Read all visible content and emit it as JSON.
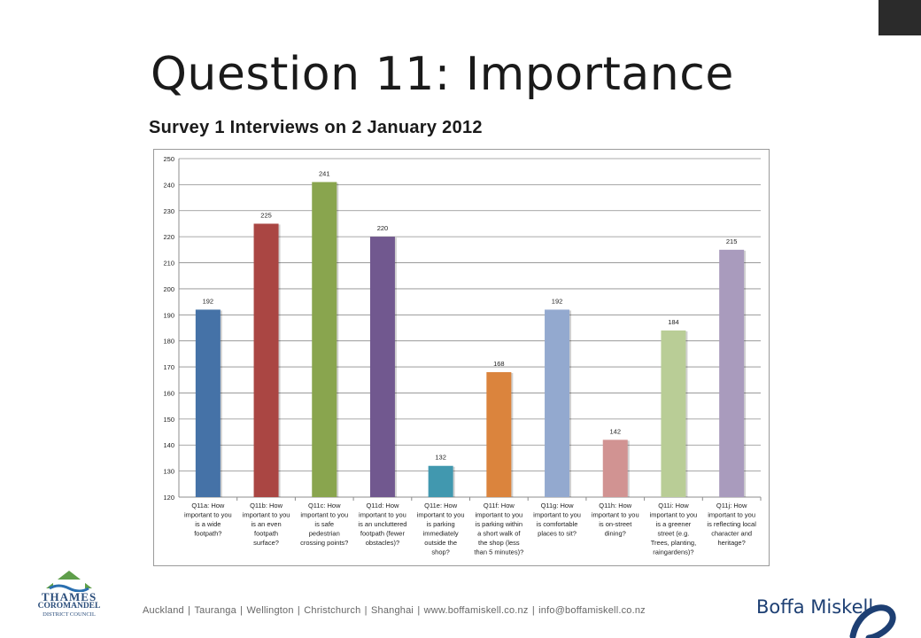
{
  "slide": {
    "title": "Question 11: Importance",
    "subtitle": "Survey 1 Interviews on 2 January 2012"
  },
  "chart_data": {
    "type": "bar",
    "title": "",
    "xlabel": "",
    "ylabel": "",
    "ylim": [
      120,
      250
    ],
    "ytick_step": 10,
    "grid": true,
    "legend": "none",
    "categories": [
      [
        "Q11a: How",
        "important to you",
        "is a wide",
        "footpath?"
      ],
      [
        "Q11b: How",
        "important to you",
        "is an even",
        "footpath",
        "surface?"
      ],
      [
        "Q11c: How",
        "important to you",
        "is safe",
        "pedestrian",
        "crossing points?"
      ],
      [
        "Q11d: How",
        "important to you",
        "is an uncluttered",
        "footpath (fewer",
        "obstacles)?"
      ],
      [
        "Q11e: How",
        "important to you",
        "is parking",
        "immediately",
        "outside the",
        "shop?"
      ],
      [
        "Q11f: How",
        "important to you",
        "is parking within",
        "a short walk of",
        "the shop (less",
        "than 5 minutes)?"
      ],
      [
        "Q11g: How",
        "important to you",
        "is comfortable",
        "places to sit?"
      ],
      [
        "Q11h: How",
        "important to you",
        "is on-street",
        "dining?"
      ],
      [
        "Q11i: How",
        "important to you",
        "is a greener",
        "street (e.g.",
        "Trees, planting,",
        "raingardens)?"
      ],
      [
        "Q11j: How",
        "important to you",
        "is reflecting local",
        "character and",
        "heritage?"
      ]
    ],
    "values": [
      192,
      225,
      241,
      220,
      132,
      168,
      192,
      142,
      184,
      215
    ],
    "colors": [
      "#4572a7",
      "#aa4643",
      "#89a54e",
      "#71588f",
      "#4198af",
      "#db843d",
      "#93a9cf",
      "#d19392",
      "#b9cd96",
      "#a99bbd"
    ]
  },
  "footer": {
    "locations": [
      "Auckland",
      "Tauranga",
      "Wellington",
      "Christchurch",
      "Shanghai",
      "www.boffamiskell.co.nz",
      "info@boffamiskell.co.nz"
    ],
    "brand": "Boffa Miskell"
  },
  "council_logo": {
    "line1": "THAMES",
    "line2": "COROMANDEL",
    "line3": "DISTRICT COUNCIL"
  }
}
